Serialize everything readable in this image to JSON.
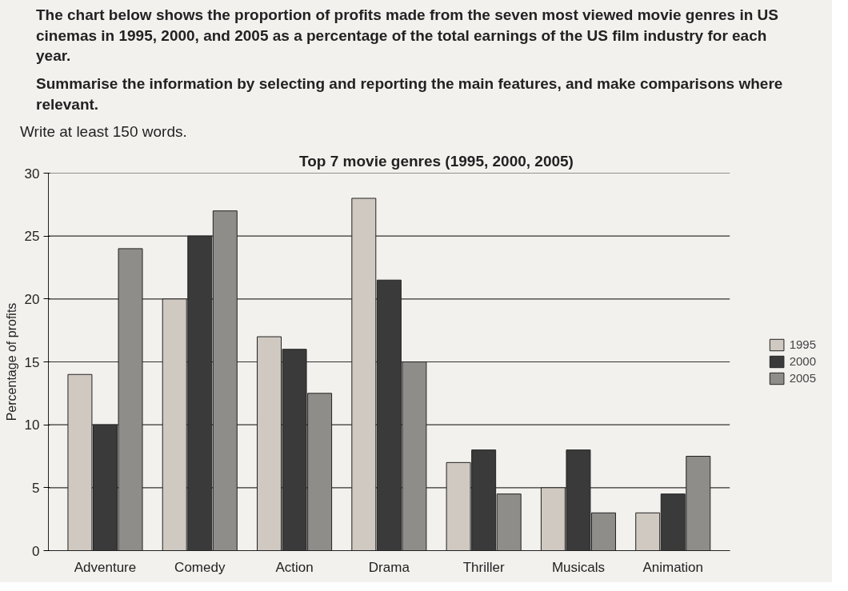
{
  "chart_data": {
    "type": "bar",
    "title": "Top 7 movie genres (1995, 2000, 2005)",
    "ylabel": "Percentage of profits",
    "annotations": [
      "The chart below shows the proportion of profits made from the seven most viewed movie genres in US cinemas in 1995, 2000, and 2005 as a percentage of the total earnings of the US film industry for each year.",
      "Summarise the information by selecting and reporting the main features, and make comparisons where relevant.",
      "Write at least 150 words."
    ],
    "categories": [
      "Adventure",
      "Comedy",
      "Action",
      "Drama",
      "Thriller",
      "Musicals",
      "Animation"
    ],
    "series": [
      {
        "name": "1995",
        "color": "#cfc9c1",
        "values": [
          14,
          20,
          17,
          28,
          7,
          5,
          3
        ]
      },
      {
        "name": "2000",
        "color": "#3a3a3a",
        "values": [
          10,
          25,
          16,
          21.5,
          8,
          8,
          4.5
        ]
      },
      {
        "name": "2005",
        "color": "#8f8d8a",
        "values": [
          24,
          27,
          12.5,
          15,
          4.5,
          3,
          7.5
        ]
      }
    ],
    "ylim": [
      0,
      30
    ],
    "yticks": [
      0,
      5,
      10,
      15,
      20,
      25,
      30
    ],
    "grid": "y",
    "legend": "right"
  }
}
